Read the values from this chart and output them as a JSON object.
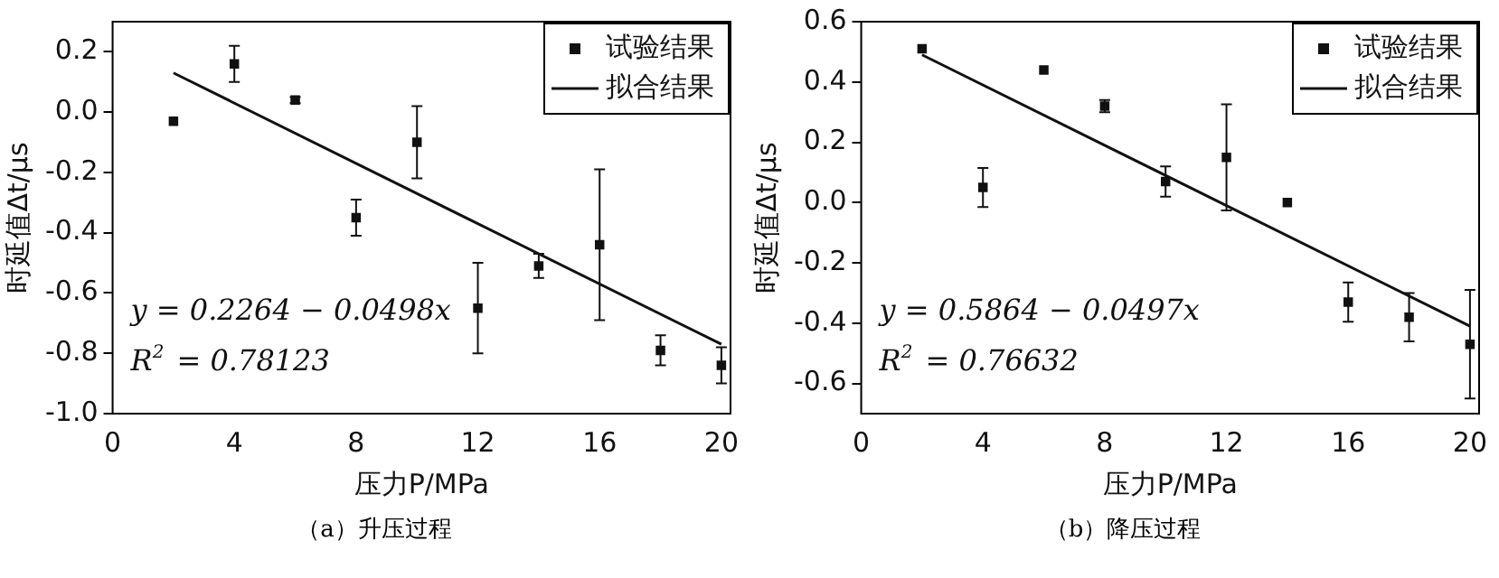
{
  "chart_data": [
    {
      "type": "scatter",
      "xlabel": "压力P/MPa",
      "ylabel": "时延值Δt/μs",
      "xlim": [
        0,
        20.3
      ],
      "xticks": [
        0,
        4,
        8,
        12,
        16,
        20
      ],
      "ylim": [
        -1.0,
        0.3
      ],
      "yticks": [
        {
          "value": -1.0,
          "label": "-1.0"
        },
        {
          "value": -0.8,
          "label": "-0.8"
        },
        {
          "value": -0.6,
          "label": "-0.6"
        },
        {
          "value": -0.4,
          "label": "-0.4"
        },
        {
          "value": -0.2,
          "label": "-0.2"
        },
        {
          "value": 0,
          "label": "0.0"
        },
        {
          "value": 0.2,
          "label": "0.2"
        }
      ],
      "grid": false,
      "legend": "top right",
      "marker": "square",
      "series": [
        {
          "name": "试验结果",
          "color": "#111111",
          "x": [
            2,
            4,
            6,
            8,
            10,
            12,
            14,
            16,
            18,
            20
          ],
          "values": [
            -0.03,
            0.16,
            0.04,
            -0.35,
            -0.1,
            -0.65,
            -0.51,
            -0.44,
            -0.79,
            -0.84
          ],
          "errors": [
            null,
            0.06,
            0.01,
            0.06,
            0.12,
            0.15,
            0.04,
            0.25,
            0.05,
            0.06
          ]
        },
        {
          "name": "拟合结果",
          "type": "line",
          "color": "#111111",
          "x": [
            2,
            20
          ],
          "values": [
            0.13,
            -0.77
          ],
          "marker": "none",
          "line_style": "solid"
        }
      ],
      "annotations": [
        "y = 0.2264 − 0.0498x",
        "R$^{2}$ = 0.78123",
        "（a）升压过程"
      ]
    },
    {
      "type": "scatter",
      "xlabel": "压力P/MPa",
      "ylabel": "时延值Δt/μs",
      "xlim": [
        0,
        20.3
      ],
      "xticks": [
        0,
        4,
        8,
        12,
        16,
        20
      ],
      "ylim": [
        -0.7,
        0.6
      ],
      "yticks": [
        {
          "value": -0.6,
          "label": "-0.6"
        },
        {
          "value": -0.4,
          "label": "-0.4"
        },
        {
          "value": -0.2,
          "label": "-0.2"
        },
        {
          "value": 0,
          "label": "0.0"
        },
        {
          "value": 0.2,
          "label": "0.2"
        },
        {
          "value": 0.4,
          "label": "0.4"
        },
        {
          "value": 0.6,
          "label": "0.6"
        }
      ],
      "grid": false,
      "legend": "top right",
      "marker": "square",
      "series": [
        {
          "name": "试验结果",
          "color": "#111111",
          "x": [
            2,
            4,
            6,
            8,
            10,
            12,
            14,
            16,
            18,
            20
          ],
          "values": [
            0.51,
            0.05,
            0.44,
            0.32,
            0.07,
            0.15,
            0.0,
            -0.33,
            -0.38,
            -0.47
          ],
          "errors": [
            null,
            0.065,
            null,
            0.02,
            0.05,
            0.176,
            null,
            0.065,
            0.08,
            0.18
          ]
        },
        {
          "name": "拟合结果",
          "type": "line",
          "color": "#111111",
          "x": [
            2,
            20
          ],
          "values": [
            0.49,
            -0.41
          ],
          "marker": "none",
          "line_style": "solid"
        }
      ],
      "annotations": [
        "y = 0.5864 − 0.0497x",
        "R$^{2}$ = 0.76632",
        "（b）降压过程"
      ]
    }
  ]
}
